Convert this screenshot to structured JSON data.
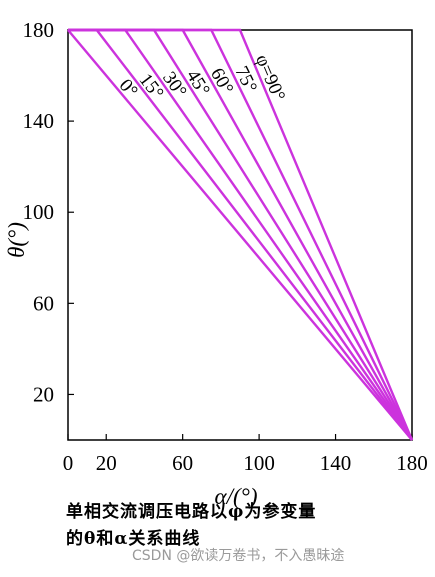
{
  "chart_data": {
    "type": "line",
    "title": "",
    "xlabel": "α/(°)",
    "ylabel": "θ(°)",
    "xlim": [
      0,
      180
    ],
    "ylim": [
      0,
      180
    ],
    "x_ticks": [
      "0",
      "20",
      "60",
      "100",
      "140",
      "180"
    ],
    "x_tick_values": [
      0,
      20,
      60,
      100,
      140,
      180
    ],
    "y_ticks": [
      "20",
      "60",
      "100",
      "140",
      "180"
    ],
    "y_tick_values": [
      20,
      60,
      100,
      140,
      180
    ],
    "grid": false,
    "line_color": "#cc33dd",
    "series": [
      {
        "name": "0°",
        "points": [
          [
            0,
            180
          ],
          [
            180,
            0
          ]
        ]
      },
      {
        "name": "15°",
        "points": [
          [
            0,
            180
          ],
          [
            15,
            180
          ],
          [
            180,
            0
          ]
        ]
      },
      {
        "name": "30°",
        "points": [
          [
            0,
            180
          ],
          [
            30,
            180
          ],
          [
            180,
            0
          ]
        ]
      },
      {
        "name": "45°",
        "points": [
          [
            0,
            180
          ],
          [
            45,
            180
          ],
          [
            180,
            0
          ]
        ]
      },
      {
        "name": "60°",
        "points": [
          [
            0,
            180
          ],
          [
            60,
            180
          ],
          [
            180,
            0
          ]
        ]
      },
      {
        "name": "75°",
        "points": [
          [
            0,
            180
          ],
          [
            75,
            180
          ],
          [
            180,
            0
          ]
        ]
      },
      {
        "name": "φ=90°",
        "points": [
          [
            0,
            180
          ],
          [
            90,
            180
          ],
          [
            180,
            0
          ]
        ]
      }
    ]
  },
  "caption": {
    "line1": "单相交流调压电路以φ为参变量",
    "line2": "的θ和α关系曲线"
  },
  "watermark": "CSDN @欲读万卷书，不入愚昧途"
}
